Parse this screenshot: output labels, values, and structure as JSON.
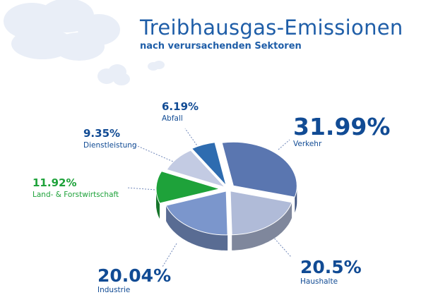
{
  "chart_data": {
    "type": "pie",
    "title": "Treibhausgas-Emissionen",
    "subtitle": "nach verursachenden Sektoren",
    "slices": [
      {
        "label": "Verkehr",
        "value": 31.99,
        "display": "31.99%",
        "color": "#5a76b0"
      },
      {
        "label": "Haushalte",
        "value": 20.5,
        "display": "20.5%",
        "color": "#b0bbd8"
      },
      {
        "label": "Industrie",
        "value": 20.04,
        "display": "20.04%",
        "color": "#7b96cc"
      },
      {
        "label": "Land- & Forstwirtschaft",
        "value": 11.92,
        "display": "11.92%",
        "color": "#1ea23a"
      },
      {
        "label": "Dienstleistung",
        "value": 9.35,
        "display": "9.35%",
        "color": "#c3cbe3"
      },
      {
        "label": "Abfall",
        "value": 6.19,
        "display": "6.19%",
        "color": "#2e6cb0"
      }
    ]
  }
}
